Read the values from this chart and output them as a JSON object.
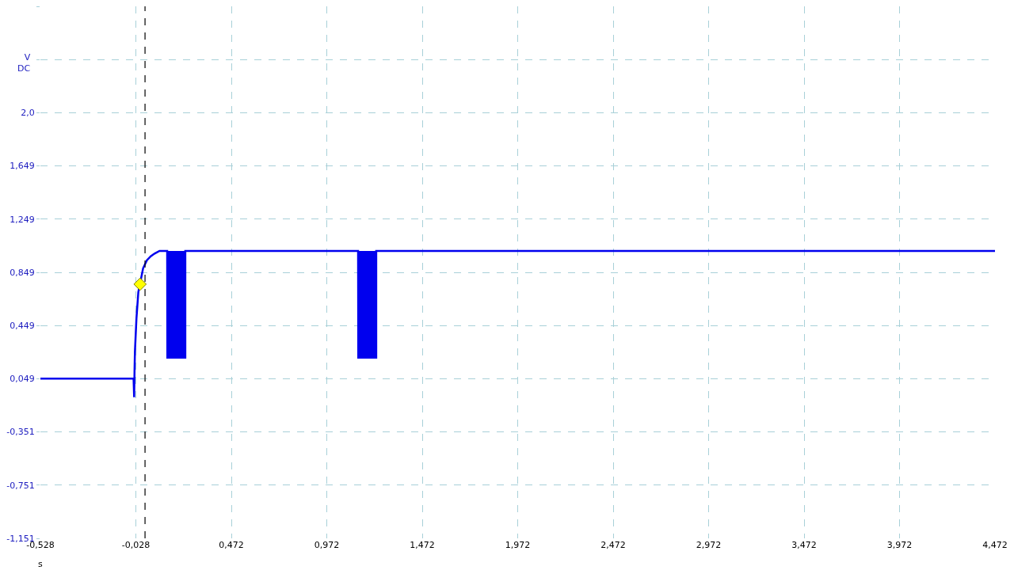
{
  "chart_data": {
    "type": "line",
    "xlabel": "s",
    "ylabel": "V DC",
    "x": [
      -0.528,
      -0.3,
      -0.1,
      -0.04,
      -0.037,
      -0.035,
      -0.033,
      -0.025,
      -0.015,
      0.01,
      0.03,
      0.05,
      0.07,
      0.096,
      0.136,
      0.137,
      0.142,
      0.146,
      0.151,
      0.156,
      0.16,
      0.165,
      0.17,
      0.175,
      0.179,
      0.184,
      0.189,
      0.193,
      0.198,
      0.203,
      0.207,
      0.212,
      0.217,
      0.221,
      0.226,
      0.231,
      0.231,
      0.6,
      1.136,
      1.137,
      1.142,
      1.146,
      1.151,
      1.156,
      1.16,
      1.165,
      1.17,
      1.175,
      1.179,
      1.184,
      1.189,
      1.193,
      1.198,
      1.203,
      1.207,
      1.212,
      1.217,
      1.221,
      1.226,
      1.231,
      1.231,
      2.5,
      4.472
    ],
    "series": [
      {
        "color": "#0000ee",
        "marker": "none",
        "line_style": "solid",
        "values": [
          0.05,
          0.05,
          0.05,
          0.05,
          -0.09,
          0.1,
          0.25,
          0.5,
          0.7,
          0.88,
          0.94,
          0.97,
          0.99,
          1.01,
          1.01,
          0.2,
          1.01,
          0.2,
          1.01,
          0.2,
          1.01,
          0.2,
          1.01,
          0.2,
          1.01,
          0.2,
          1.01,
          0.2,
          1.01,
          0.2,
          1.01,
          0.2,
          1.01,
          0.2,
          1.01,
          0.2,
          1.01,
          1.01,
          1.01,
          0.2,
          1.01,
          0.2,
          1.01,
          0.2,
          1.01,
          0.2,
          1.01,
          0.2,
          1.01,
          0.2,
          1.01,
          0.2,
          1.01,
          0.2,
          1.01,
          0.2,
          1.01,
          0.2,
          1.01,
          0.2,
          1.01,
          1.01,
          1.01
        ]
      },
      {
        "type": "scatter",
        "color": "#ffff00",
        "marker": "diamond",
        "x": [
          -0.006
        ],
        "values": [
          0.76
        ]
      }
    ],
    "xlim": [
      -0.528,
      4.472
    ],
    "xticks": [
      {
        "value": -0.528,
        "label": "-0,528"
      },
      {
        "value": -0.028,
        "label": "-0,028"
      },
      {
        "value": 0.472,
        "label": "0,472"
      },
      {
        "value": 0.972,
        "label": "0,972"
      },
      {
        "value": 1.472,
        "label": "1,472"
      },
      {
        "value": 1.972,
        "label": "1,972"
      },
      {
        "value": 2.472,
        "label": "2,472"
      },
      {
        "value": 2.972,
        "label": "2,972"
      },
      {
        "value": 3.472,
        "label": "3,472"
      },
      {
        "value": 3.972,
        "label": "3,972"
      },
      {
        "value": 4.472,
        "label": "4,472"
      }
    ],
    "ylim": [
      -1.151,
      2.849
    ],
    "yticks": [
      {
        "value": -1.151,
        "label": "-1,151"
      },
      {
        "value": -0.751,
        "label": "-0,751"
      },
      {
        "value": -0.351,
        "label": "-0,351"
      },
      {
        "value": 0.049,
        "label": "0,049"
      },
      {
        "value": 0.449,
        "label": "0,449"
      },
      {
        "value": 0.849,
        "label": "0,849"
      },
      {
        "value": 1.249,
        "label": "1,249"
      },
      {
        "value": 1.649,
        "label": "1,649"
      },
      {
        "value": 2.049,
        "label": "2,0"
      },
      {
        "value": 2.449,
        "label": null
      },
      {
        "value": 2.849,
        "label": null
      }
    ],
    "ref_lines": [
      {
        "axis": "x",
        "value": 0.02,
        "color": "#000000",
        "line_style": "dashed"
      }
    ],
    "grid": true
  }
}
